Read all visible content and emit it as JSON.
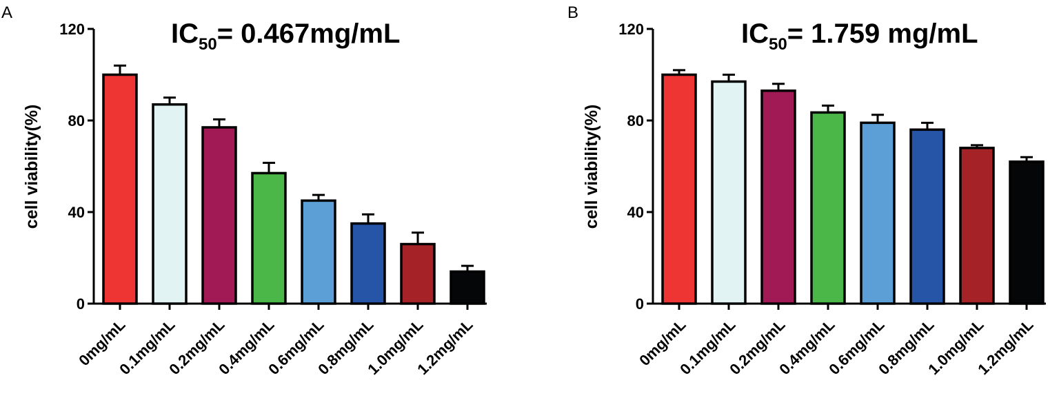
{
  "chart_data": [
    {
      "panel": "A",
      "type": "bar",
      "title_main": "IC",
      "title_sub": "50",
      "title_rest": "= 0.467mg/mL",
      "ylabel": "cell viability(%)",
      "xlabel": "",
      "ylim": [
        0,
        120
      ],
      "yticks": [
        "0",
        "40",
        "80",
        "120"
      ],
      "categories": [
        "0mg/mL",
        "0.1mg/mL",
        "0.2mg/mL",
        "0.4mg/mL",
        "0.6mg/mL",
        "0.8mg/mL",
        "1.0mg/mL",
        "1.2mg/mL"
      ],
      "values": [
        100,
        87,
        77,
        57,
        45,
        35,
        26,
        14
      ],
      "errors": [
        4,
        3,
        3.5,
        4.5,
        2.5,
        4,
        5,
        2.5
      ],
      "colors": [
        "#ef3434",
        "#e2f3f3",
        "#a21a55",
        "#4bb748",
        "#5b9fd6",
        "#2655a8",
        "#a52327",
        "#050608"
      ]
    },
    {
      "panel": "B",
      "type": "bar",
      "title_main": "IC",
      "title_sub": "50",
      "title_rest": "= 1.759 mg/mL",
      "ylabel": "cell viability(%)",
      "xlabel": "",
      "ylim": [
        0,
        120
      ],
      "yticks": [
        "0",
        "40",
        "80",
        "120"
      ],
      "categories": [
        "0mg/mL",
        "0.1mg/mL",
        "0.2mg/mL",
        "0.4mg/mL",
        "0.6mg/mL",
        "0.8mg/mL",
        "1.0mg/mL",
        "1.2mg/mL"
      ],
      "values": [
        100,
        97,
        93,
        83.5,
        79,
        76,
        68,
        62
      ],
      "errors": [
        2,
        3,
        3,
        3,
        3.5,
        3,
        1.2,
        2
      ],
      "colors": [
        "#ef3434",
        "#e2f3f3",
        "#a21a55",
        "#4bb748",
        "#5b9fd6",
        "#2655a8",
        "#a52327",
        "#050608"
      ]
    }
  ]
}
